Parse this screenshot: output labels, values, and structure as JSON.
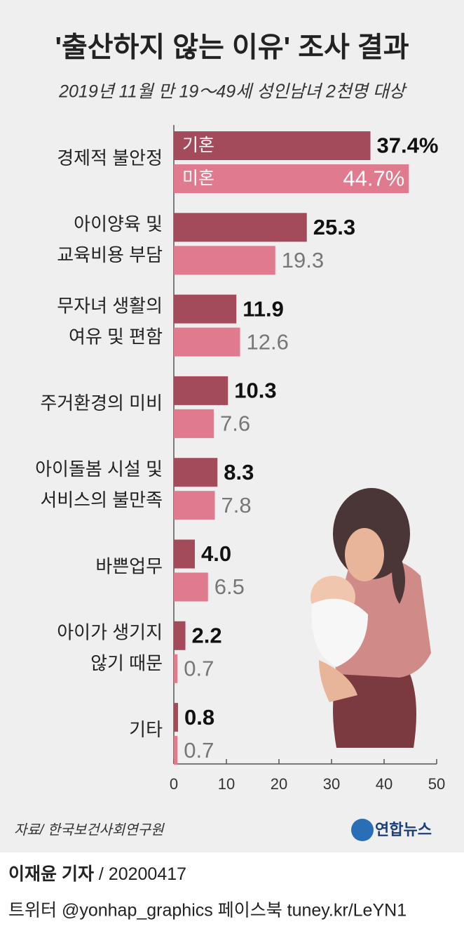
{
  "chart_data": {
    "type": "bar",
    "orientation": "horizontal",
    "title": "'출산하지 않는 이유' 조사 결과",
    "subtitle": "2019년 11월 만 19～49세 성인남녀 2천명 대상",
    "categories": [
      [
        "경제적 불안정"
      ],
      [
        "아이양육 및",
        "교육비용 부담"
      ],
      [
        "무자녀 생활의",
        "여유 및 편함"
      ],
      [
        "주거환경의 미비"
      ],
      [
        "아이돌봄 시설 및",
        "서비스의 불만족"
      ],
      [
        "바쁜업무"
      ],
      [
        "아이가 생기지",
        "않기 때문"
      ],
      [
        "기타"
      ]
    ],
    "series": [
      {
        "name": "기혼",
        "color": "#a34a5b",
        "values": [
          37.4,
          25.3,
          11.9,
          10.3,
          8.3,
          4.0,
          2.2,
          0.8
        ],
        "value_labels": [
          "37.4%",
          "25.3",
          "11.9",
          "10.3",
          "8.3",
          "4.0",
          "2.2",
          "0.8"
        ]
      },
      {
        "name": "미혼",
        "color": "#e07a8e",
        "values": [
          44.7,
          19.3,
          12.6,
          7.6,
          7.8,
          6.5,
          0.7,
          0.7
        ],
        "value_labels": [
          "44.7%",
          "19.3",
          "12.6",
          "7.6",
          "7.8",
          "6.5",
          "0.7",
          "0.7"
        ]
      }
    ],
    "xlim": [
      0,
      50
    ],
    "xticks": [
      0,
      10,
      20,
      30,
      40,
      50
    ],
    "source": "자료/ 한국보건사회연구원",
    "logo": "연합뉴스"
  },
  "footer": {
    "reporter": "이재윤 기자",
    "date": "/ 20200417",
    "social": "트위터 @yonhap_graphics  페이스북 tuney.kr/LeYN1"
  }
}
